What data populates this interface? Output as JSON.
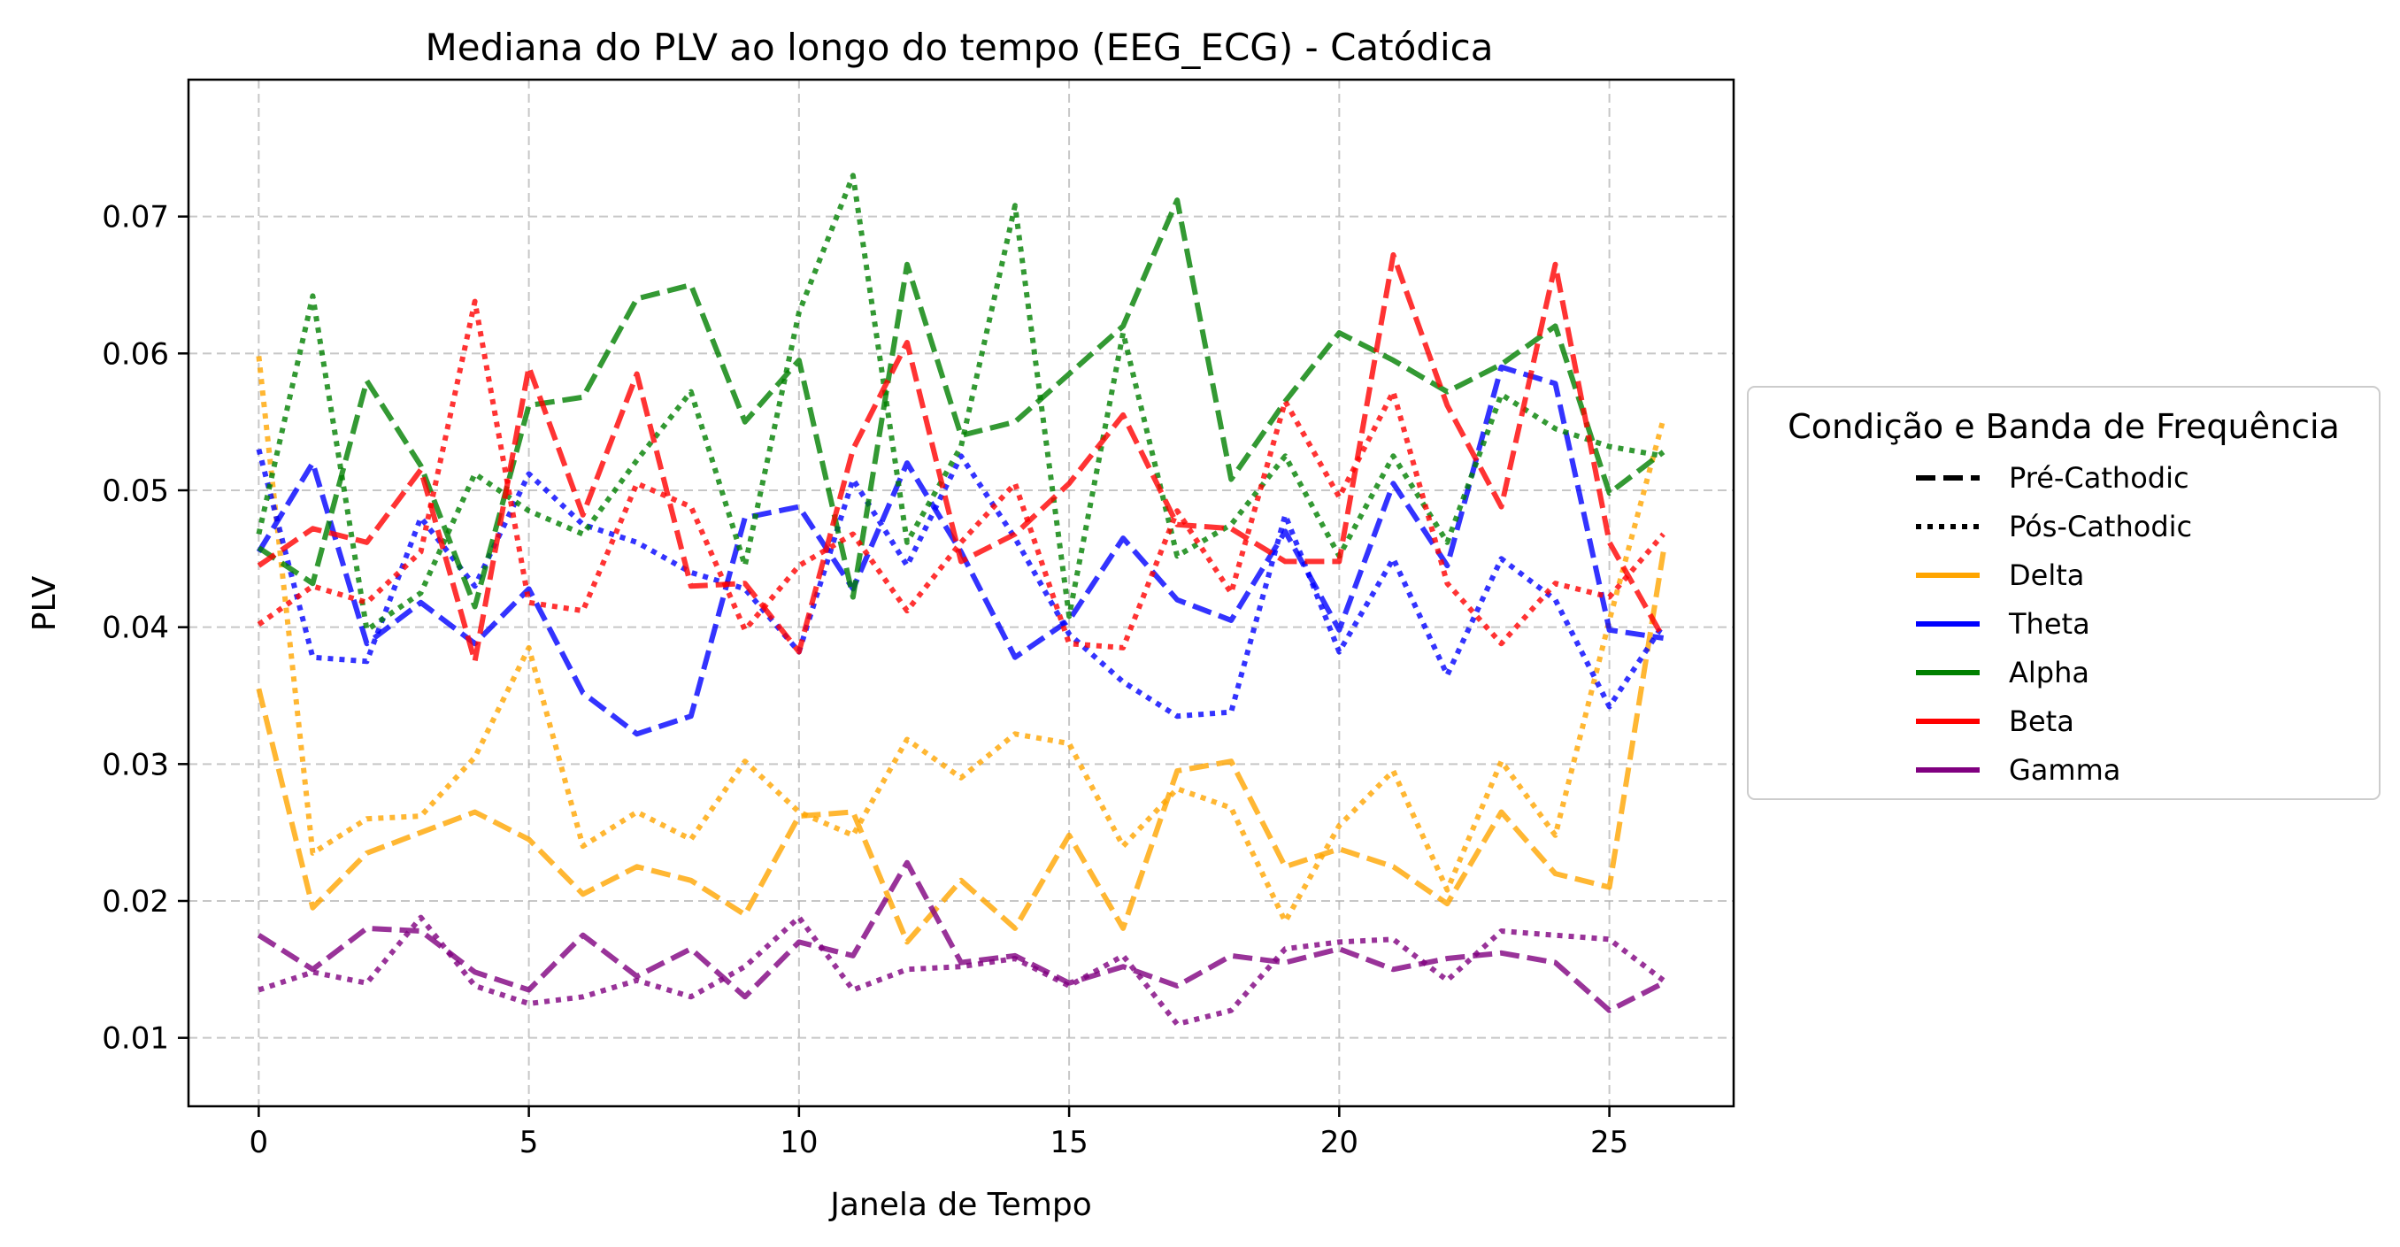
{
  "chart_data": {
    "type": "line",
    "title": "Mediana do PLV ao longo do tempo (EEG_ECG) - Catódica",
    "xlabel": "Janela de Tempo",
    "ylabel": "PLV",
    "xlim": [
      -1.3,
      27.3
    ],
    "ylim": [
      0.005,
      0.08
    ],
    "xticks": [
      0,
      5,
      10,
      15,
      20,
      25
    ],
    "yticks": [
      0.01,
      0.02,
      0.03,
      0.04,
      0.05,
      0.06,
      0.07
    ],
    "xtick_labels": [
      "0",
      "5",
      "10",
      "15",
      "20",
      "25"
    ],
    "ytick_labels": [
      "0.01",
      "0.02",
      "0.03",
      "0.04",
      "0.05",
      "0.06",
      "0.07"
    ],
    "grid": true,
    "x": [
      0,
      1,
      2,
      3,
      4,
      5,
      6,
      7,
      8,
      9,
      10,
      11,
      12,
      13,
      14,
      15,
      16,
      17,
      18,
      19,
      20,
      21,
      22,
      23,
      24,
      25,
      26
    ],
    "legend": {
      "title": "Condição e Banda de Frequência",
      "placement": "outside-right",
      "style_entries": [
        {
          "label": "Pré-Cathodic",
          "style": "dashed"
        },
        {
          "label": "Pós-Cathodic",
          "style": "dotted"
        }
      ],
      "color_entries": [
        {
          "label": "Delta",
          "color": "#FFA500"
        },
        {
          "label": "Theta",
          "color": "#0000FF"
        },
        {
          "label": "Alpha",
          "color": "#008000"
        },
        {
          "label": "Beta",
          "color": "#FF0000"
        },
        {
          "label": "Gamma",
          "color": "#800080"
        }
      ]
    },
    "series": [
      {
        "band": "Delta",
        "condition": "Pré-Cathodic",
        "color": "#FFA500",
        "style": "dashed",
        "values": [
          0.0355,
          0.0195,
          0.0235,
          0.025,
          0.0265,
          0.0245,
          0.0205,
          0.0225,
          0.0215,
          0.019,
          0.0262,
          0.0265,
          0.017,
          0.0215,
          0.018,
          0.0248,
          0.018,
          0.0295,
          0.0302,
          0.0225,
          0.0238,
          0.0225,
          0.0198,
          0.0265,
          0.022,
          0.021,
          0.0455
        ]
      },
      {
        "band": "Delta",
        "condition": "Pós-Cathodic",
        "color": "#FFA500",
        "style": "dotted",
        "values": [
          0.0598,
          0.0235,
          0.026,
          0.0262,
          0.0305,
          0.0385,
          0.024,
          0.0265,
          0.0245,
          0.0302,
          0.0265,
          0.0248,
          0.0318,
          0.029,
          0.0322,
          0.0315,
          0.024,
          0.0282,
          0.0268,
          0.0185,
          0.0255,
          0.0295,
          0.0208,
          0.0302,
          0.0248,
          0.0405,
          0.0552
        ]
      },
      {
        "band": "Theta",
        "condition": "Pré-Cathodic",
        "color": "#0000FF",
        "style": "dashed",
        "values": [
          0.0455,
          0.052,
          0.0388,
          0.0418,
          0.0388,
          0.0428,
          0.0352,
          0.0322,
          0.0335,
          0.048,
          0.0488,
          0.0428,
          0.052,
          0.0455,
          0.0378,
          0.0405,
          0.0465,
          0.042,
          0.0405,
          0.047,
          0.0398,
          0.0505,
          0.0445,
          0.059,
          0.0578,
          0.0398,
          0.0392
        ]
      },
      {
        "band": "Theta",
        "condition": "Pós-Cathodic",
        "color": "#0000FF",
        "style": "dotted",
        "values": [
          0.053,
          0.0378,
          0.0375,
          0.048,
          0.043,
          0.0512,
          0.0475,
          0.0462,
          0.044,
          0.0428,
          0.0382,
          0.0508,
          0.0445,
          0.0525,
          0.0465,
          0.0395,
          0.036,
          0.0335,
          0.0338,
          0.0482,
          0.0382,
          0.045,
          0.0365,
          0.045,
          0.042,
          0.0342,
          0.0402
        ]
      },
      {
        "band": "Alpha",
        "condition": "Pré-Cathodic",
        "color": "#008000",
        "style": "dashed",
        "values": [
          0.0458,
          0.0432,
          0.058,
          0.0518,
          0.0415,
          0.0562,
          0.0568,
          0.064,
          0.065,
          0.055,
          0.0595,
          0.0422,
          0.0665,
          0.054,
          0.055,
          0.0585,
          0.062,
          0.0712,
          0.0508,
          0.0565,
          0.0615,
          0.0595,
          0.0572,
          0.0592,
          0.062,
          0.0498,
          0.0528
        ]
      },
      {
        "band": "Alpha",
        "condition": "Pós-Cathodic",
        "color": "#008000",
        "style": "dotted",
        "values": [
          0.0468,
          0.0642,
          0.0398,
          0.0425,
          0.0512,
          0.0485,
          0.0468,
          0.0522,
          0.0572,
          0.0445,
          0.063,
          0.073,
          0.0462,
          0.0532,
          0.0708,
          0.0408,
          0.0615,
          0.0452,
          0.0475,
          0.0525,
          0.0452,
          0.0525,
          0.0462,
          0.057,
          0.0545,
          0.0532,
          0.0525
        ]
      },
      {
        "band": "Beta",
        "condition": "Pré-Cathodic",
        "color": "#FF0000",
        "style": "dashed",
        "values": [
          0.0445,
          0.0472,
          0.0462,
          0.0515,
          0.0375,
          0.059,
          0.0482,
          0.0585,
          0.043,
          0.0432,
          0.0382,
          0.053,
          0.0608,
          0.0448,
          0.0468,
          0.0505,
          0.0555,
          0.0475,
          0.0472,
          0.0448,
          0.0448,
          0.0672,
          0.0562,
          0.0488,
          0.0665,
          0.0462,
          0.0392
        ]
      },
      {
        "band": "Beta",
        "condition": "Pós-Cathodic",
        "color": "#FF0000",
        "style": "dotted",
        "values": [
          0.0402,
          0.043,
          0.0418,
          0.0455,
          0.0638,
          0.0418,
          0.0412,
          0.0505,
          0.0488,
          0.0398,
          0.0445,
          0.0468,
          0.0412,
          0.0462,
          0.0505,
          0.0388,
          0.0385,
          0.0485,
          0.0425,
          0.0565,
          0.0495,
          0.0572,
          0.0432,
          0.0388,
          0.0432,
          0.0422,
          0.0468
        ]
      },
      {
        "band": "Gamma",
        "condition": "Pré-Cathodic",
        "color": "#800080",
        "style": "dashed",
        "values": [
          0.0175,
          0.015,
          0.018,
          0.0178,
          0.0148,
          0.0135,
          0.0175,
          0.0145,
          0.0165,
          0.013,
          0.017,
          0.016,
          0.0228,
          0.0155,
          0.016,
          0.014,
          0.0152,
          0.0138,
          0.016,
          0.0155,
          0.0165,
          0.015,
          0.0158,
          0.0162,
          0.0155,
          0.012,
          0.014
        ]
      },
      {
        "band": "Gamma",
        "condition": "Pós-Cathodic",
        "color": "#800080",
        "style": "dotted",
        "values": [
          0.0135,
          0.0148,
          0.014,
          0.0188,
          0.0138,
          0.0125,
          0.013,
          0.0142,
          0.013,
          0.0152,
          0.0188,
          0.0135,
          0.015,
          0.0152,
          0.0158,
          0.0138,
          0.016,
          0.011,
          0.012,
          0.0165,
          0.017,
          0.0172,
          0.0142,
          0.0178,
          0.0175,
          0.0172,
          0.0142
        ]
      }
    ]
  }
}
